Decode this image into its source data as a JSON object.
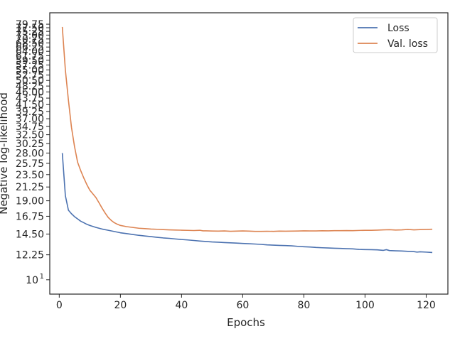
{
  "chart_data": {
    "type": "line",
    "xlabel": "Epochs",
    "ylabel": "Negative log-likelihood",
    "xlim": [
      -3.1,
      127.1
    ],
    "ylim": [
      8.9,
      87.5
    ],
    "yscale": "log",
    "grid": false,
    "legend_position": "top-right",
    "x_ticks": [
      0,
      20,
      40,
      60,
      80,
      100,
      120
    ],
    "y_ticks": [
      {
        "value": 10,
        "label": "10",
        "exponent": "1"
      },
      {
        "value": 12.25,
        "label": "12.25"
      },
      {
        "value": 14.5,
        "label": "14.50"
      },
      {
        "value": 16.75,
        "label": "16.75"
      },
      {
        "value": 19.0,
        "label": "19.00"
      },
      {
        "value": 21.25,
        "label": "21.25"
      },
      {
        "value": 23.5,
        "label": "23.50"
      },
      {
        "value": 25.75,
        "label": "25.75"
      },
      {
        "value": 28.0,
        "label": "28.00"
      },
      {
        "value": 30.25,
        "label": "30.25"
      },
      {
        "value": 32.5,
        "label": "32.50"
      },
      {
        "value": 34.75,
        "label": "34.75"
      },
      {
        "value": 37.0,
        "label": "37.00"
      },
      {
        "value": 39.25,
        "label": "39.25"
      },
      {
        "value": 41.5,
        "label": "41.50"
      },
      {
        "value": 43.75,
        "label": "43.75"
      },
      {
        "value": 46.0,
        "label": "46.00"
      },
      {
        "value": 48.25,
        "label": "48.25"
      },
      {
        "value": 50.5,
        "label": "50.50"
      },
      {
        "value": 52.75,
        "label": "52.75"
      },
      {
        "value": 55.0,
        "label": "55.00"
      },
      {
        "value": 57.25,
        "label": "57.25"
      },
      {
        "value": 59.5,
        "label": "59.50"
      },
      {
        "value": 61.75,
        "label": "61.75"
      },
      {
        "value": 64.0,
        "label": "64.00"
      },
      {
        "value": 66.25,
        "label": "66.25"
      },
      {
        "value": 68.5,
        "label": "68.50"
      },
      {
        "value": 70.75,
        "label": "70.75"
      },
      {
        "value": 73.0,
        "label": "73.00"
      },
      {
        "value": 75.25,
        "label": "75.25"
      },
      {
        "value": 77.5,
        "label": "77.50"
      },
      {
        "value": 79.75,
        "label": "79.75"
      }
    ],
    "series": [
      {
        "name": "Loss",
        "color": "#4c72b0",
        "points": [
          [
            1,
            28.0
          ],
          [
            2,
            19.8
          ],
          [
            3,
            17.6
          ],
          [
            4,
            17.1
          ],
          [
            5,
            16.7
          ],
          [
            6,
            16.4
          ],
          [
            7,
            16.1
          ],
          [
            8,
            15.9
          ],
          [
            9,
            15.7
          ],
          [
            10,
            15.55
          ],
          [
            12,
            15.3
          ],
          [
            14,
            15.1
          ],
          [
            16,
            14.95
          ],
          [
            18,
            14.8
          ],
          [
            20,
            14.65
          ],
          [
            22,
            14.55
          ],
          [
            24,
            14.45
          ],
          [
            26,
            14.35
          ],
          [
            28,
            14.27
          ],
          [
            30,
            14.2
          ],
          [
            32,
            14.12
          ],
          [
            34,
            14.05
          ],
          [
            36,
            14.0
          ],
          [
            38,
            13.93
          ],
          [
            40,
            13.87
          ],
          [
            42,
            13.82
          ],
          [
            44,
            13.76
          ],
          [
            46,
            13.7
          ],
          [
            48,
            13.65
          ],
          [
            50,
            13.6
          ],
          [
            52,
            13.57
          ],
          [
            54,
            13.53
          ],
          [
            56,
            13.5
          ],
          [
            58,
            13.47
          ],
          [
            60,
            13.43
          ],
          [
            62,
            13.4
          ],
          [
            64,
            13.37
          ],
          [
            66,
            13.33
          ],
          [
            68,
            13.28
          ],
          [
            70,
            13.25
          ],
          [
            72,
            13.22
          ],
          [
            74,
            13.2
          ],
          [
            76,
            13.17
          ],
          [
            78,
            13.12
          ],
          [
            80,
            13.08
          ],
          [
            82,
            13.05
          ],
          [
            84,
            13.0
          ],
          [
            86,
            12.97
          ],
          [
            88,
            12.95
          ],
          [
            90,
            12.92
          ],
          [
            92,
            12.9
          ],
          [
            94,
            12.87
          ],
          [
            96,
            12.85
          ],
          [
            98,
            12.8
          ],
          [
            100,
            12.78
          ],
          [
            102,
            12.77
          ],
          [
            104,
            12.75
          ],
          [
            106,
            12.7
          ],
          [
            107,
            12.77
          ],
          [
            108,
            12.68
          ],
          [
            110,
            12.65
          ],
          [
            112,
            12.63
          ],
          [
            114,
            12.6
          ],
          [
            116,
            12.57
          ],
          [
            117,
            12.52
          ],
          [
            118,
            12.55
          ],
          [
            120,
            12.52
          ],
          [
            122,
            12.48
          ]
        ]
      },
      {
        "name": "Val. loss",
        "color": "#dd8452",
        "points": [
          [
            1,
            78.0
          ],
          [
            2,
            55.0
          ],
          [
            3,
            43.0
          ],
          [
            4,
            34.5
          ],
          [
            5,
            29.5
          ],
          [
            6,
            26.0
          ],
          [
            7,
            24.3
          ],
          [
            8,
            22.9
          ],
          [
            9,
            21.7
          ],
          [
            10,
            20.7
          ],
          [
            11,
            20.1
          ],
          [
            12,
            19.5
          ],
          [
            13,
            18.7
          ],
          [
            14,
            17.9
          ],
          [
            15,
            17.2
          ],
          [
            16,
            16.6
          ],
          [
            17,
            16.2
          ],
          [
            18,
            15.9
          ],
          [
            19,
            15.7
          ],
          [
            20,
            15.55
          ],
          [
            22,
            15.4
          ],
          [
            24,
            15.3
          ],
          [
            26,
            15.2
          ],
          [
            28,
            15.15
          ],
          [
            30,
            15.1
          ],
          [
            32,
            15.07
          ],
          [
            34,
            15.03
          ],
          [
            36,
            15.0
          ],
          [
            38,
            14.98
          ],
          [
            40,
            14.96
          ],
          [
            42,
            14.94
          ],
          [
            44,
            14.92
          ],
          [
            46,
            14.95
          ],
          [
            47,
            14.88
          ],
          [
            48,
            14.88
          ],
          [
            50,
            14.86
          ],
          [
            52,
            14.85
          ],
          [
            54,
            14.87
          ],
          [
            56,
            14.83
          ],
          [
            58,
            14.85
          ],
          [
            60,
            14.87
          ],
          [
            62,
            14.85
          ],
          [
            64,
            14.82
          ],
          [
            66,
            14.82
          ],
          [
            68,
            14.83
          ],
          [
            70,
            14.82
          ],
          [
            72,
            14.85
          ],
          [
            74,
            14.84
          ],
          [
            76,
            14.85
          ],
          [
            78,
            14.86
          ],
          [
            80,
            14.88
          ],
          [
            82,
            14.87
          ],
          [
            84,
            14.87
          ],
          [
            86,
            14.89
          ],
          [
            88,
            14.88
          ],
          [
            90,
            14.9
          ],
          [
            92,
            14.9
          ],
          [
            94,
            14.91
          ],
          [
            96,
            14.9
          ],
          [
            98,
            14.93
          ],
          [
            100,
            14.95
          ],
          [
            102,
            14.95
          ],
          [
            104,
            14.97
          ],
          [
            106,
            15.0
          ],
          [
            108,
            15.02
          ],
          [
            110,
            14.98
          ],
          [
            112,
            15.0
          ],
          [
            114,
            15.05
          ],
          [
            116,
            15.0
          ],
          [
            118,
            15.03
          ],
          [
            120,
            15.05
          ],
          [
            122,
            15.08
          ]
        ]
      }
    ]
  }
}
